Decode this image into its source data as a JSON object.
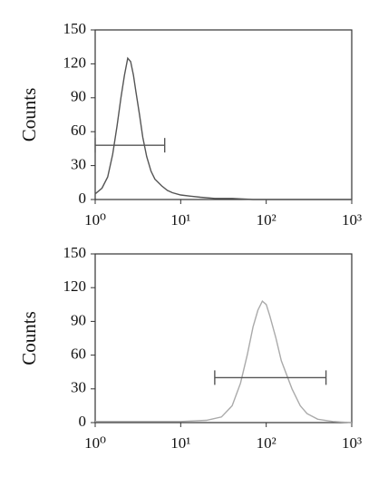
{
  "chart_data": [
    {
      "type": "line",
      "ylabel": "Counts",
      "log_x": true,
      "color": "#555555",
      "x": [
        1,
        1.2,
        1.4,
        1.6,
        1.8,
        2.0,
        2.2,
        2.4,
        2.6,
        2.8,
        3.0,
        3.3,
        3.6,
        4,
        4.5,
        5,
        6,
        7,
        8,
        10,
        13,
        17,
        25,
        40,
        70,
        150,
        1000
      ],
      "values": [
        5,
        10,
        20,
        40,
        65,
        90,
        110,
        125,
        122,
        110,
        95,
        75,
        55,
        38,
        25,
        18,
        12,
        8,
        6,
        4,
        3,
        2,
        1,
        1,
        0,
        0,
        0
      ],
      "xlim": [
        1,
        1000
      ],
      "ylim": [
        0,
        150
      ],
      "xticks": [
        {
          "value": 1,
          "label": "10⁰"
        },
        {
          "value": 10,
          "label": "10¹"
        },
        {
          "value": 100,
          "label": "10²"
        },
        {
          "value": 1000,
          "label": "10³"
        }
      ],
      "yticks": [
        0,
        30,
        60,
        90,
        120,
        150
      ],
      "gate": {
        "x": [
          1,
          6.5
        ],
        "y": 48
      }
    },
    {
      "type": "line",
      "ylabel": "Counts",
      "log_x": true,
      "color": "#aaaaaa",
      "x": [
        1,
        3,
        10,
        20,
        30,
        40,
        50,
        60,
        70,
        80,
        90,
        100,
        110,
        130,
        150,
        200,
        250,
        300,
        400,
        600,
        1000
      ],
      "values": [
        1,
        1,
        1,
        2,
        5,
        15,
        35,
        60,
        85,
        100,
        108,
        105,
        95,
        75,
        55,
        30,
        15,
        8,
        3,
        1,
        0
      ],
      "xlim": [
        1,
        1000
      ],
      "ylim": [
        0,
        150
      ],
      "xticks": [
        {
          "value": 1,
          "label": "10⁰"
        },
        {
          "value": 10,
          "label": "10¹"
        },
        {
          "value": 100,
          "label": "10²"
        },
        {
          "value": 1000,
          "label": "10³"
        }
      ],
      "yticks": [
        0,
        30,
        60,
        90,
        120,
        150
      ],
      "gate": {
        "x": [
          25,
          500
        ],
        "y": 40
      }
    }
  ]
}
